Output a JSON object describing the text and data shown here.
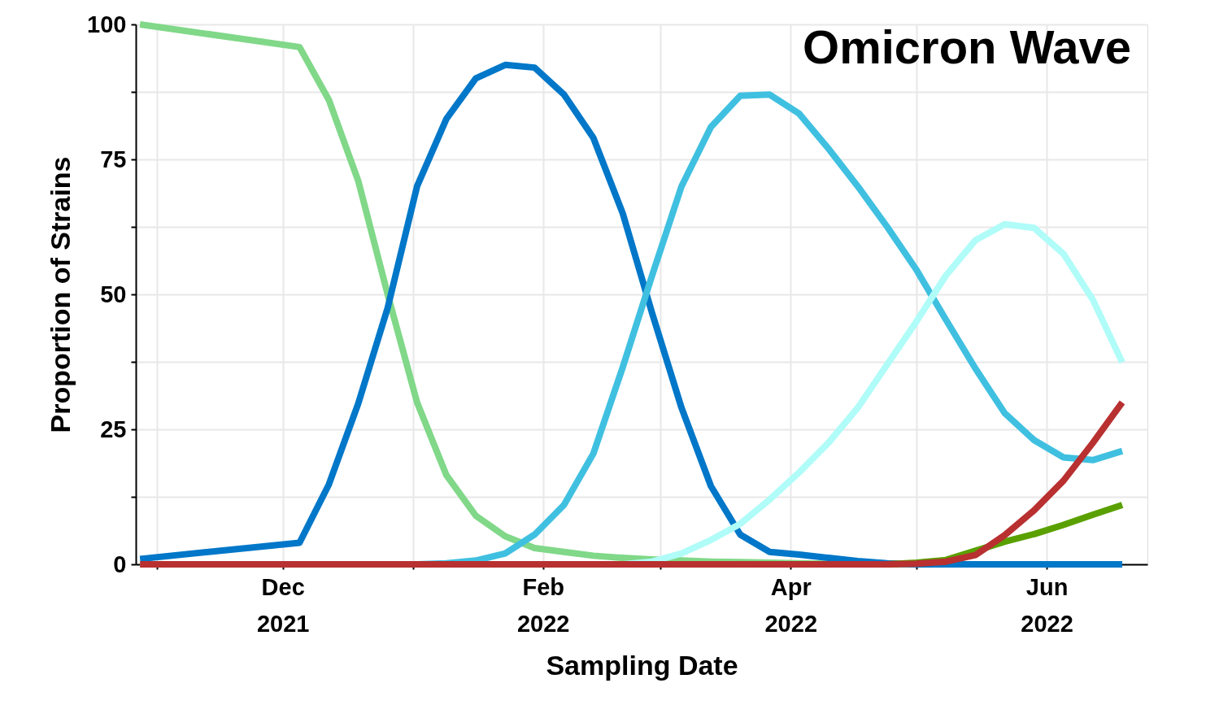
{
  "chart_data": {
    "type": "line",
    "title": "Omicron Wave",
    "xlabel": "Sampling Date",
    "ylabel": "Proportion of Strains",
    "x": [
      "2021-10-28",
      "2021-12-05",
      "2021-12-12",
      "2021-12-19",
      "2021-12-26",
      "2022-01-02",
      "2022-01-09",
      "2022-01-16",
      "2022-01-23",
      "2022-01-30",
      "2022-02-06",
      "2022-02-13",
      "2022-02-20",
      "2022-02-27",
      "2022-03-06",
      "2022-03-13",
      "2022-03-20",
      "2022-03-27",
      "2022-04-03",
      "2022-04-10",
      "2022-04-17",
      "2022-04-24",
      "2022-05-01",
      "2022-05-08",
      "2022-05-15",
      "2022-05-22",
      "2022-05-29",
      "2022-06-05",
      "2022-06-12",
      "2022-06-19"
    ],
    "series": [
      {
        "color": "#80d888",
        "values": [
          100,
          95.8,
          86,
          71,
          50,
          30,
          16.5,
          9,
          5.2,
          3,
          2.3,
          1.6,
          1.2,
          0.9,
          0.7,
          0.5,
          0.4,
          0.3,
          0.2,
          0.1,
          0,
          0,
          0,
          0,
          0,
          null,
          null,
          null,
          null,
          null
        ]
      },
      {
        "color": "#0077c8",
        "values": [
          1,
          4,
          14.8,
          29.8,
          47.5,
          70,
          82.5,
          90,
          92.5,
          92,
          87,
          79,
          65,
          46.5,
          29,
          14.5,
          5.5,
          2.3,
          1.8,
          1.2,
          0.6,
          0.2,
          0,
          0,
          0,
          0,
          0,
          0,
          0,
          0
        ]
      },
      {
        "color": "#40c0e0",
        "values": [
          0,
          0,
          0,
          0,
          0,
          0,
          0.2,
          0.7,
          2,
          5.5,
          11,
          20.5,
          36.5,
          53.5,
          70,
          81,
          86.8,
          87,
          83.5,
          77,
          70,
          62.5,
          54.5,
          45.3,
          36.3,
          28,
          23,
          19.8,
          19.3,
          21
        ]
      },
      {
        "color": "#b0fcf8",
        "values": [
          0,
          0,
          0,
          0,
          0,
          0,
          0,
          0,
          0,
          0,
          0,
          0,
          0,
          0.5,
          2,
          4.5,
          7.5,
          12,
          17,
          22.5,
          29,
          37,
          45,
          53.5,
          60,
          63,
          62.3,
          57.5,
          49,
          37.4
        ]
      },
      {
        "color": "#5aa000",
        "values": [
          null,
          null,
          null,
          null,
          null,
          null,
          null,
          null,
          null,
          null,
          null,
          null,
          null,
          null,
          null,
          null,
          null,
          null,
          null,
          null,
          null,
          0,
          0.3,
          0.8,
          2.5,
          4.2,
          5.6,
          7.3,
          9.2,
          11
        ]
      },
      {
        "color": "#b83030",
        "values": [
          0,
          0,
          0,
          0,
          0,
          0,
          0,
          0,
          0,
          0,
          0,
          0,
          0,
          0,
          0,
          0,
          0,
          0,
          0,
          0,
          0,
          0,
          0.1,
          0.5,
          1.7,
          5.4,
          10,
          15.5,
          22.5,
          30
        ]
      }
    ],
    "xlim": [
      "2021-10-27",
      "2022-06-25"
    ],
    "xticks": [
      {
        "value": "2021-11-01",
        "label": null
      },
      {
        "value": "2021-12-01",
        "label": "Dec 2021"
      },
      {
        "value": "2022-01-01",
        "label": null
      },
      {
        "value": "2022-02-01",
        "label": "Feb 2022"
      },
      {
        "value": "2022-03-01",
        "label": null
      },
      {
        "value": "2022-04-01",
        "label": "Apr 2022"
      },
      {
        "value": "2022-05-01",
        "label": null
      },
      {
        "value": "2022-06-01",
        "label": "Jun 2022"
      }
    ],
    "ylim": [
      0,
      100
    ],
    "yticks": [
      0,
      {
        "value": 12.5,
        "label": null
      },
      25,
      {
        "value": 37.5,
        "label": null
      },
      50,
      {
        "value": 62.5,
        "label": null
      },
      75,
      {
        "value": 87.5,
        "label": null
      },
      100
    ],
    "grid": true,
    "line_style": "solid",
    "marker": "none"
  }
}
